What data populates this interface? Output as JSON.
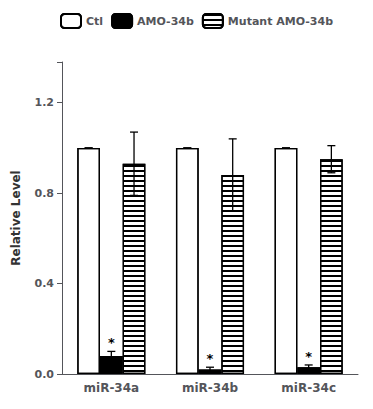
{
  "chart_data": {
    "type": "bar",
    "categories": [
      "miR-34a",
      "miR-34b",
      "miR-34c"
    ],
    "series": [
      {
        "name": "Ctl",
        "color": "white",
        "values": [
          1.0,
          1.0,
          1.0
        ],
        "errors": [
          0.0,
          0.0,
          0.0
        ]
      },
      {
        "name": "AMO-34b",
        "color": "black",
        "values": [
          0.08,
          0.02,
          0.03
        ],
        "errors": [
          0.02,
          0.01,
          0.01
        ]
      },
      {
        "name": "Mutant AMO-34b",
        "color": "white",
        "values": [
          0.93,
          0.88,
          0.95
        ],
        "errors": [
          0.14,
          0.16,
          0.06
        ]
      }
    ],
    "ylabel": "Relative Level",
    "ylim": [
      0,
      1.38
    ],
    "yticks": [
      {
        "value": 0.0,
        "label": "0.0"
      },
      0.4,
      0.8,
      1.2
    ],
    "grid": false,
    "legend": "upper left",
    "annotations": [
      {
        "text": "*",
        "series": "AMO-34b",
        "category": "miR-34a"
      },
      {
        "text": "*",
        "series": "AMO-34b",
        "category": "miR-34b"
      },
      {
        "text": "*",
        "series": "AMO-34b",
        "category": "miR-34c"
      }
    ]
  }
}
